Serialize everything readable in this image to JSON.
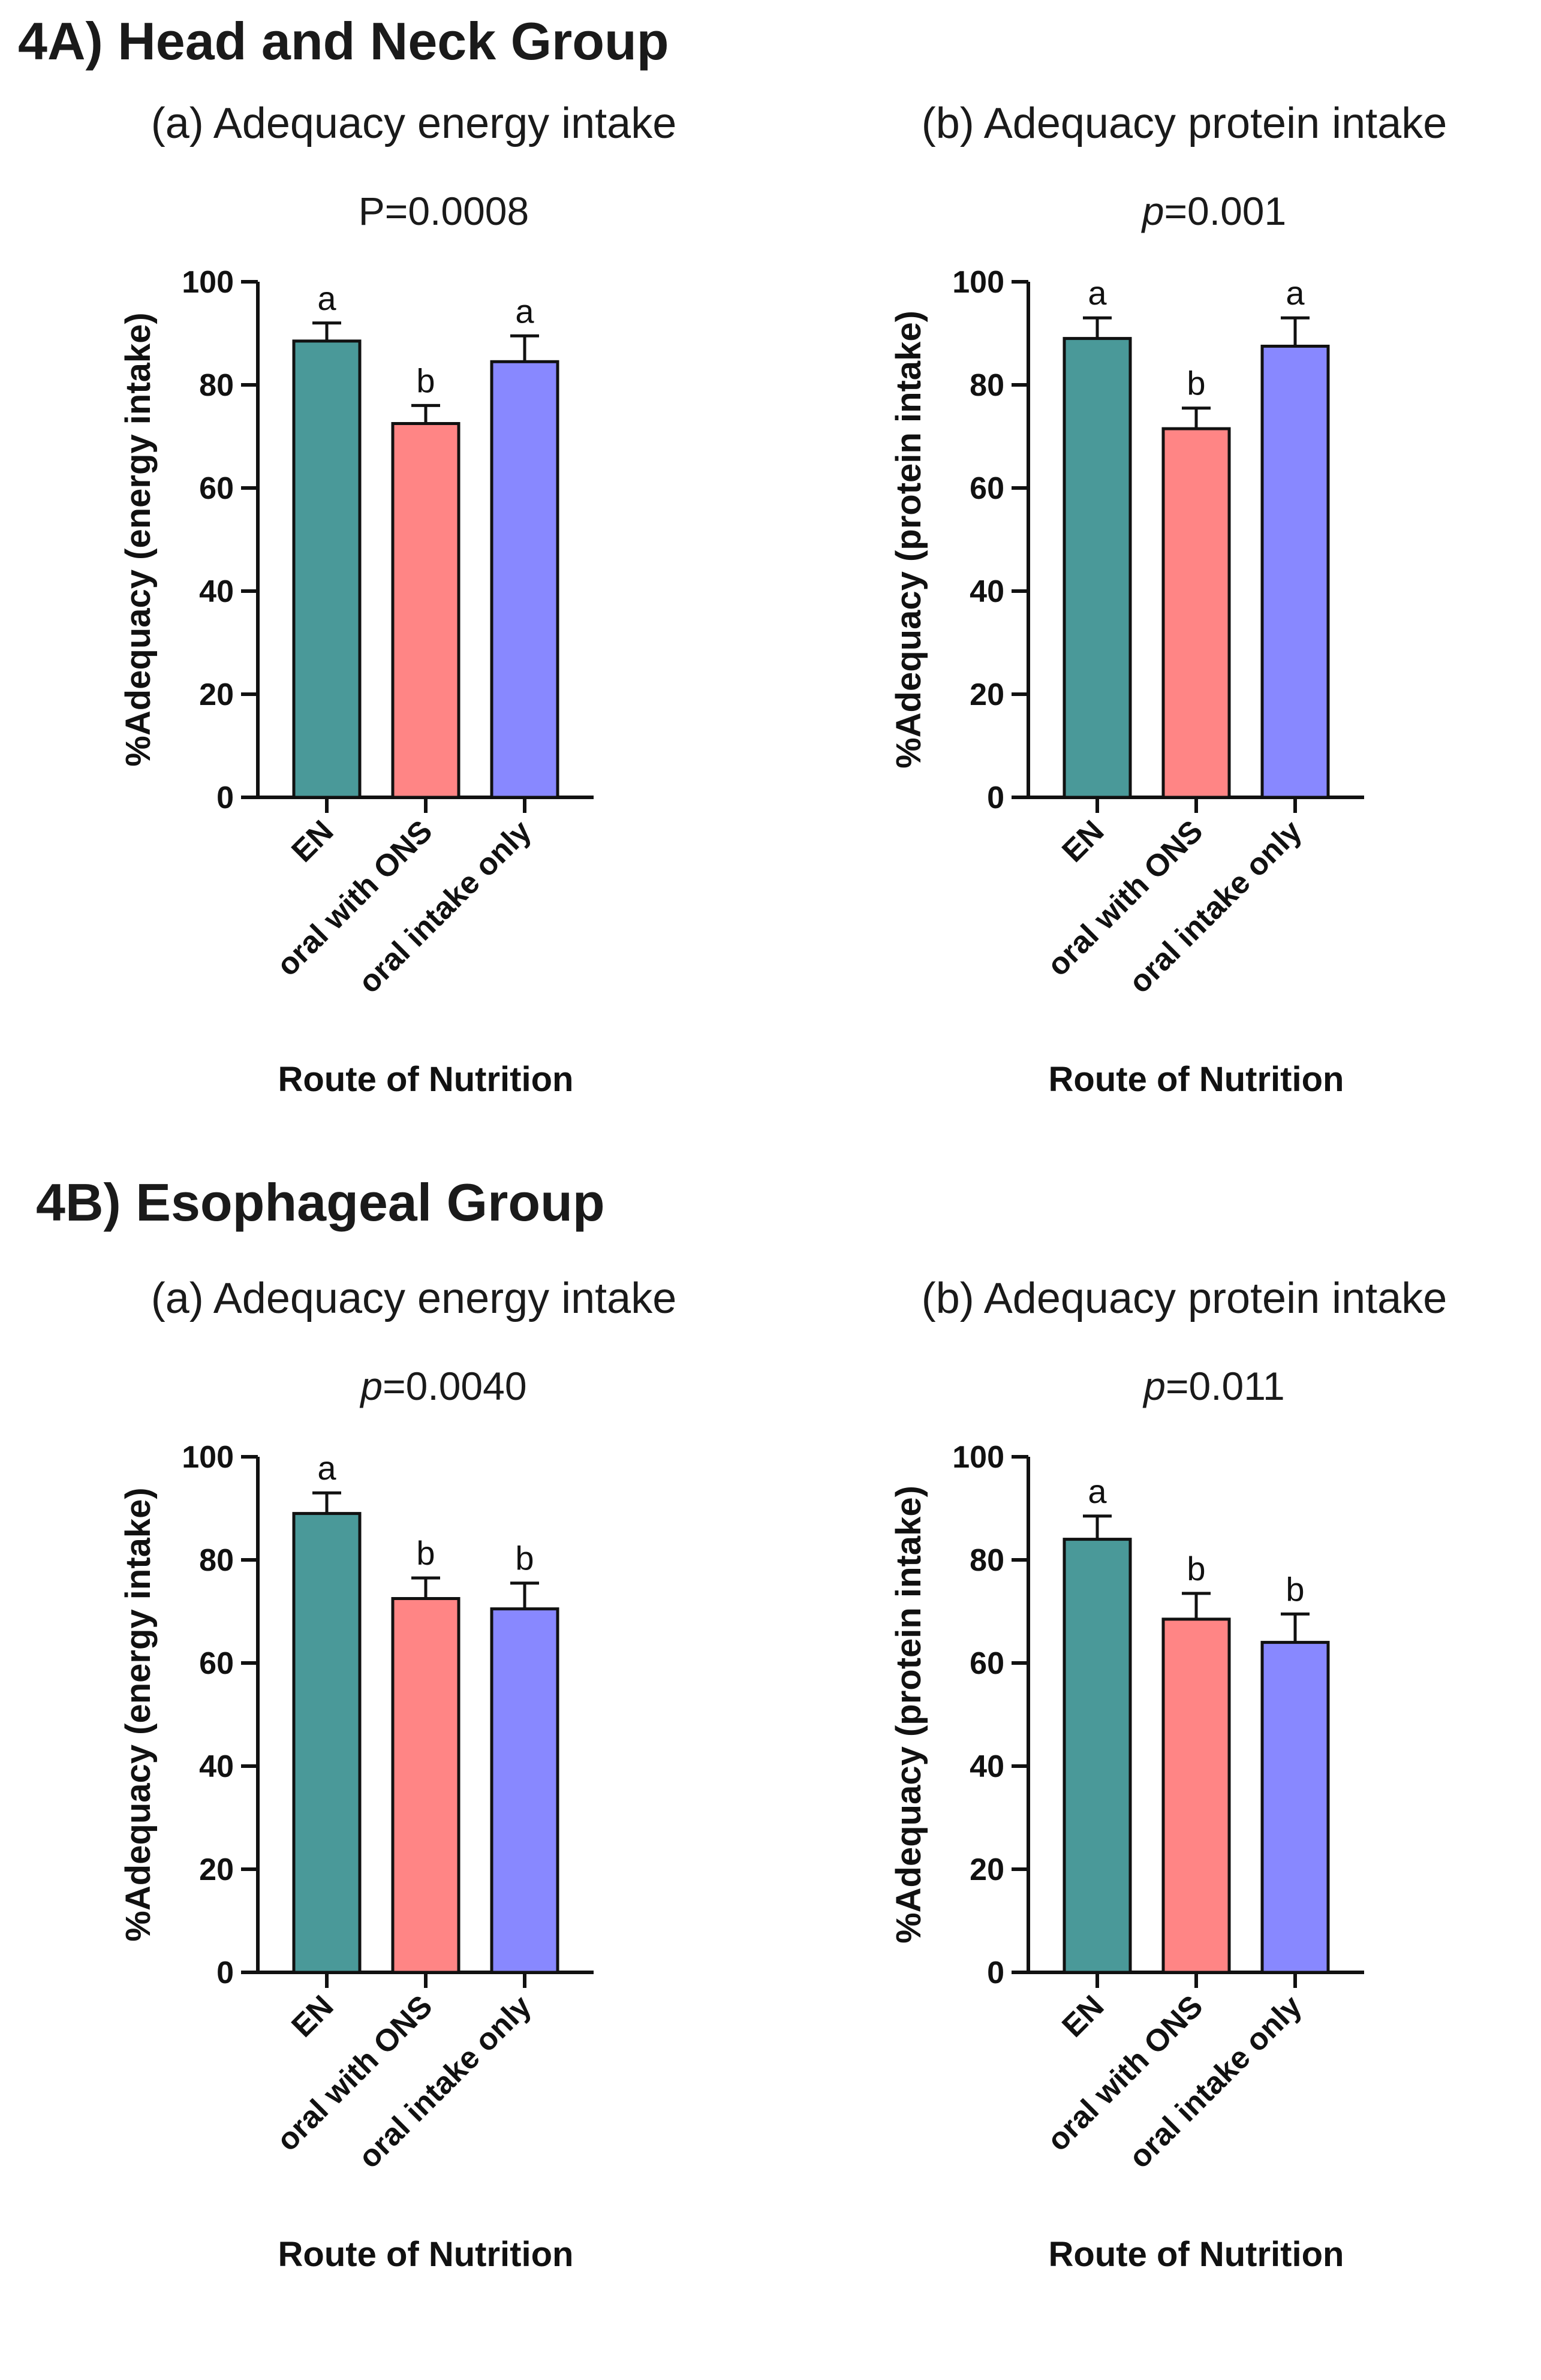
{
  "headings": {
    "group_a": "4A) Head and Neck Group",
    "group_b": "4B) Esophageal Group"
  },
  "chart_data": [
    {
      "type": "bar",
      "title": "(a) Adequacy energy intake",
      "p_label": "P",
      "p_value": "=0.0008",
      "p_italic": false,
      "xlabel": "Route of Nutrition",
      "ylabel": "%Adequacy (energy intake)",
      "ylim": [
        0,
        100
      ],
      "yticks": [
        0,
        20,
        40,
        60,
        80,
        100
      ],
      "categories": [
        "EN",
        "oral with ONS",
        "oral intake only"
      ],
      "values": [
        88.5,
        72.5,
        84.5
      ],
      "errors": [
        3.5,
        3.5,
        5.0
      ],
      "significance": [
        "a",
        "b",
        "a"
      ],
      "colors": [
        "#4a9999",
        "#ff8585",
        "#8888ff"
      ]
    },
    {
      "type": "bar",
      "title": "(b) Adequacy protein intake",
      "p_label": "p",
      "p_value": "=0.001",
      "p_italic": true,
      "xlabel": "Route of Nutrition",
      "ylabel": "%Adequacy (protein intake)",
      "ylim": [
        0,
        100
      ],
      "yticks": [
        0,
        20,
        40,
        60,
        80,
        100
      ],
      "categories": [
        "EN",
        "oral with ONS",
        "oral intake only"
      ],
      "values": [
        89.0,
        71.5,
        87.5
      ],
      "errors": [
        4.0,
        4.0,
        5.5
      ],
      "significance": [
        "a",
        "b",
        "a"
      ],
      "colors": [
        "#4a9999",
        "#ff8585",
        "#8888ff"
      ]
    },
    {
      "type": "bar",
      "title": "(a) Adequacy energy intake",
      "p_label": "p",
      "p_value": "=0.0040",
      "p_italic": true,
      "xlabel": "Route of Nutrition",
      "ylabel": "%Adequacy (energy intake)",
      "ylim": [
        0,
        100
      ],
      "yticks": [
        0,
        20,
        40,
        60,
        80,
        100
      ],
      "categories": [
        "EN",
        "oral with ONS",
        "oral intake only"
      ],
      "values": [
        89.0,
        72.5,
        70.5
      ],
      "errors": [
        4.0,
        4.0,
        5.0
      ],
      "significance": [
        "a",
        "b",
        "b"
      ],
      "colors": [
        "#4a9999",
        "#ff8585",
        "#8888ff"
      ]
    },
    {
      "type": "bar",
      "title": "(b) Adequacy protein intake",
      "p_label": "p",
      "p_value": "=0.011",
      "p_italic": true,
      "xlabel": "Route of Nutrition",
      "ylabel": "%Adequacy (protein intake)",
      "ylim": [
        0,
        100
      ],
      "yticks": [
        0,
        20,
        40,
        60,
        80,
        100
      ],
      "categories": [
        "EN",
        "oral with ONS",
        "oral intake only"
      ],
      "values": [
        84.0,
        68.5,
        64.0
      ],
      "errors": [
        4.5,
        5.0,
        5.5
      ],
      "significance": [
        "a",
        "b",
        "b"
      ],
      "colors": [
        "#4a9999",
        "#ff8585",
        "#8888ff"
      ]
    }
  ]
}
